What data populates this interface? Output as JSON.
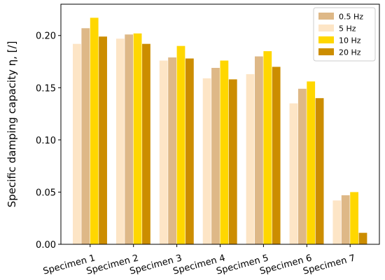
{
  "chart_data": {
    "type": "bar",
    "title": "",
    "xlabel": "",
    "ylabel": "Specific damping capacity η, [/]",
    "ylim": [
      0,
      0.23
    ],
    "yticks": [
      0.0,
      0.05,
      0.1,
      0.15,
      0.2
    ],
    "ytick_labels": [
      "0.00",
      "0.05",
      "0.10",
      "0.15",
      "0.20"
    ],
    "categories": [
      "Specimen 1",
      "Specimen 2",
      "Specimen 3",
      "Specimen 4",
      "Specimen 5",
      "Specimen 6",
      "Specimen 7"
    ],
    "series": [
      {
        "name": "5 Hz",
        "color": "#fde5c6",
        "values": [
          0.192,
          0.197,
          0.176,
          0.159,
          0.163,
          0.135,
          0.042
        ]
      },
      {
        "name": "0.5 Hz",
        "color": "#deb887",
        "values": [
          0.207,
          0.201,
          0.179,
          0.169,
          0.18,
          0.149,
          0.047
        ]
      },
      {
        "name": "10 Hz",
        "color": "#ffd700",
        "values": [
          0.217,
          0.202,
          0.19,
          0.176,
          0.185,
          0.156,
          0.05
        ]
      },
      {
        "name": "20 Hz",
        "color": "#cc8d00",
        "values": [
          0.199,
          0.192,
          0.178,
          0.158,
          0.17,
          0.14,
          0.011
        ]
      }
    ],
    "legend": {
      "placement": "top-right",
      "order": [
        "0.5 Hz",
        "5 Hz",
        "10 Hz",
        "20 Hz"
      ]
    },
    "grid": false
  }
}
